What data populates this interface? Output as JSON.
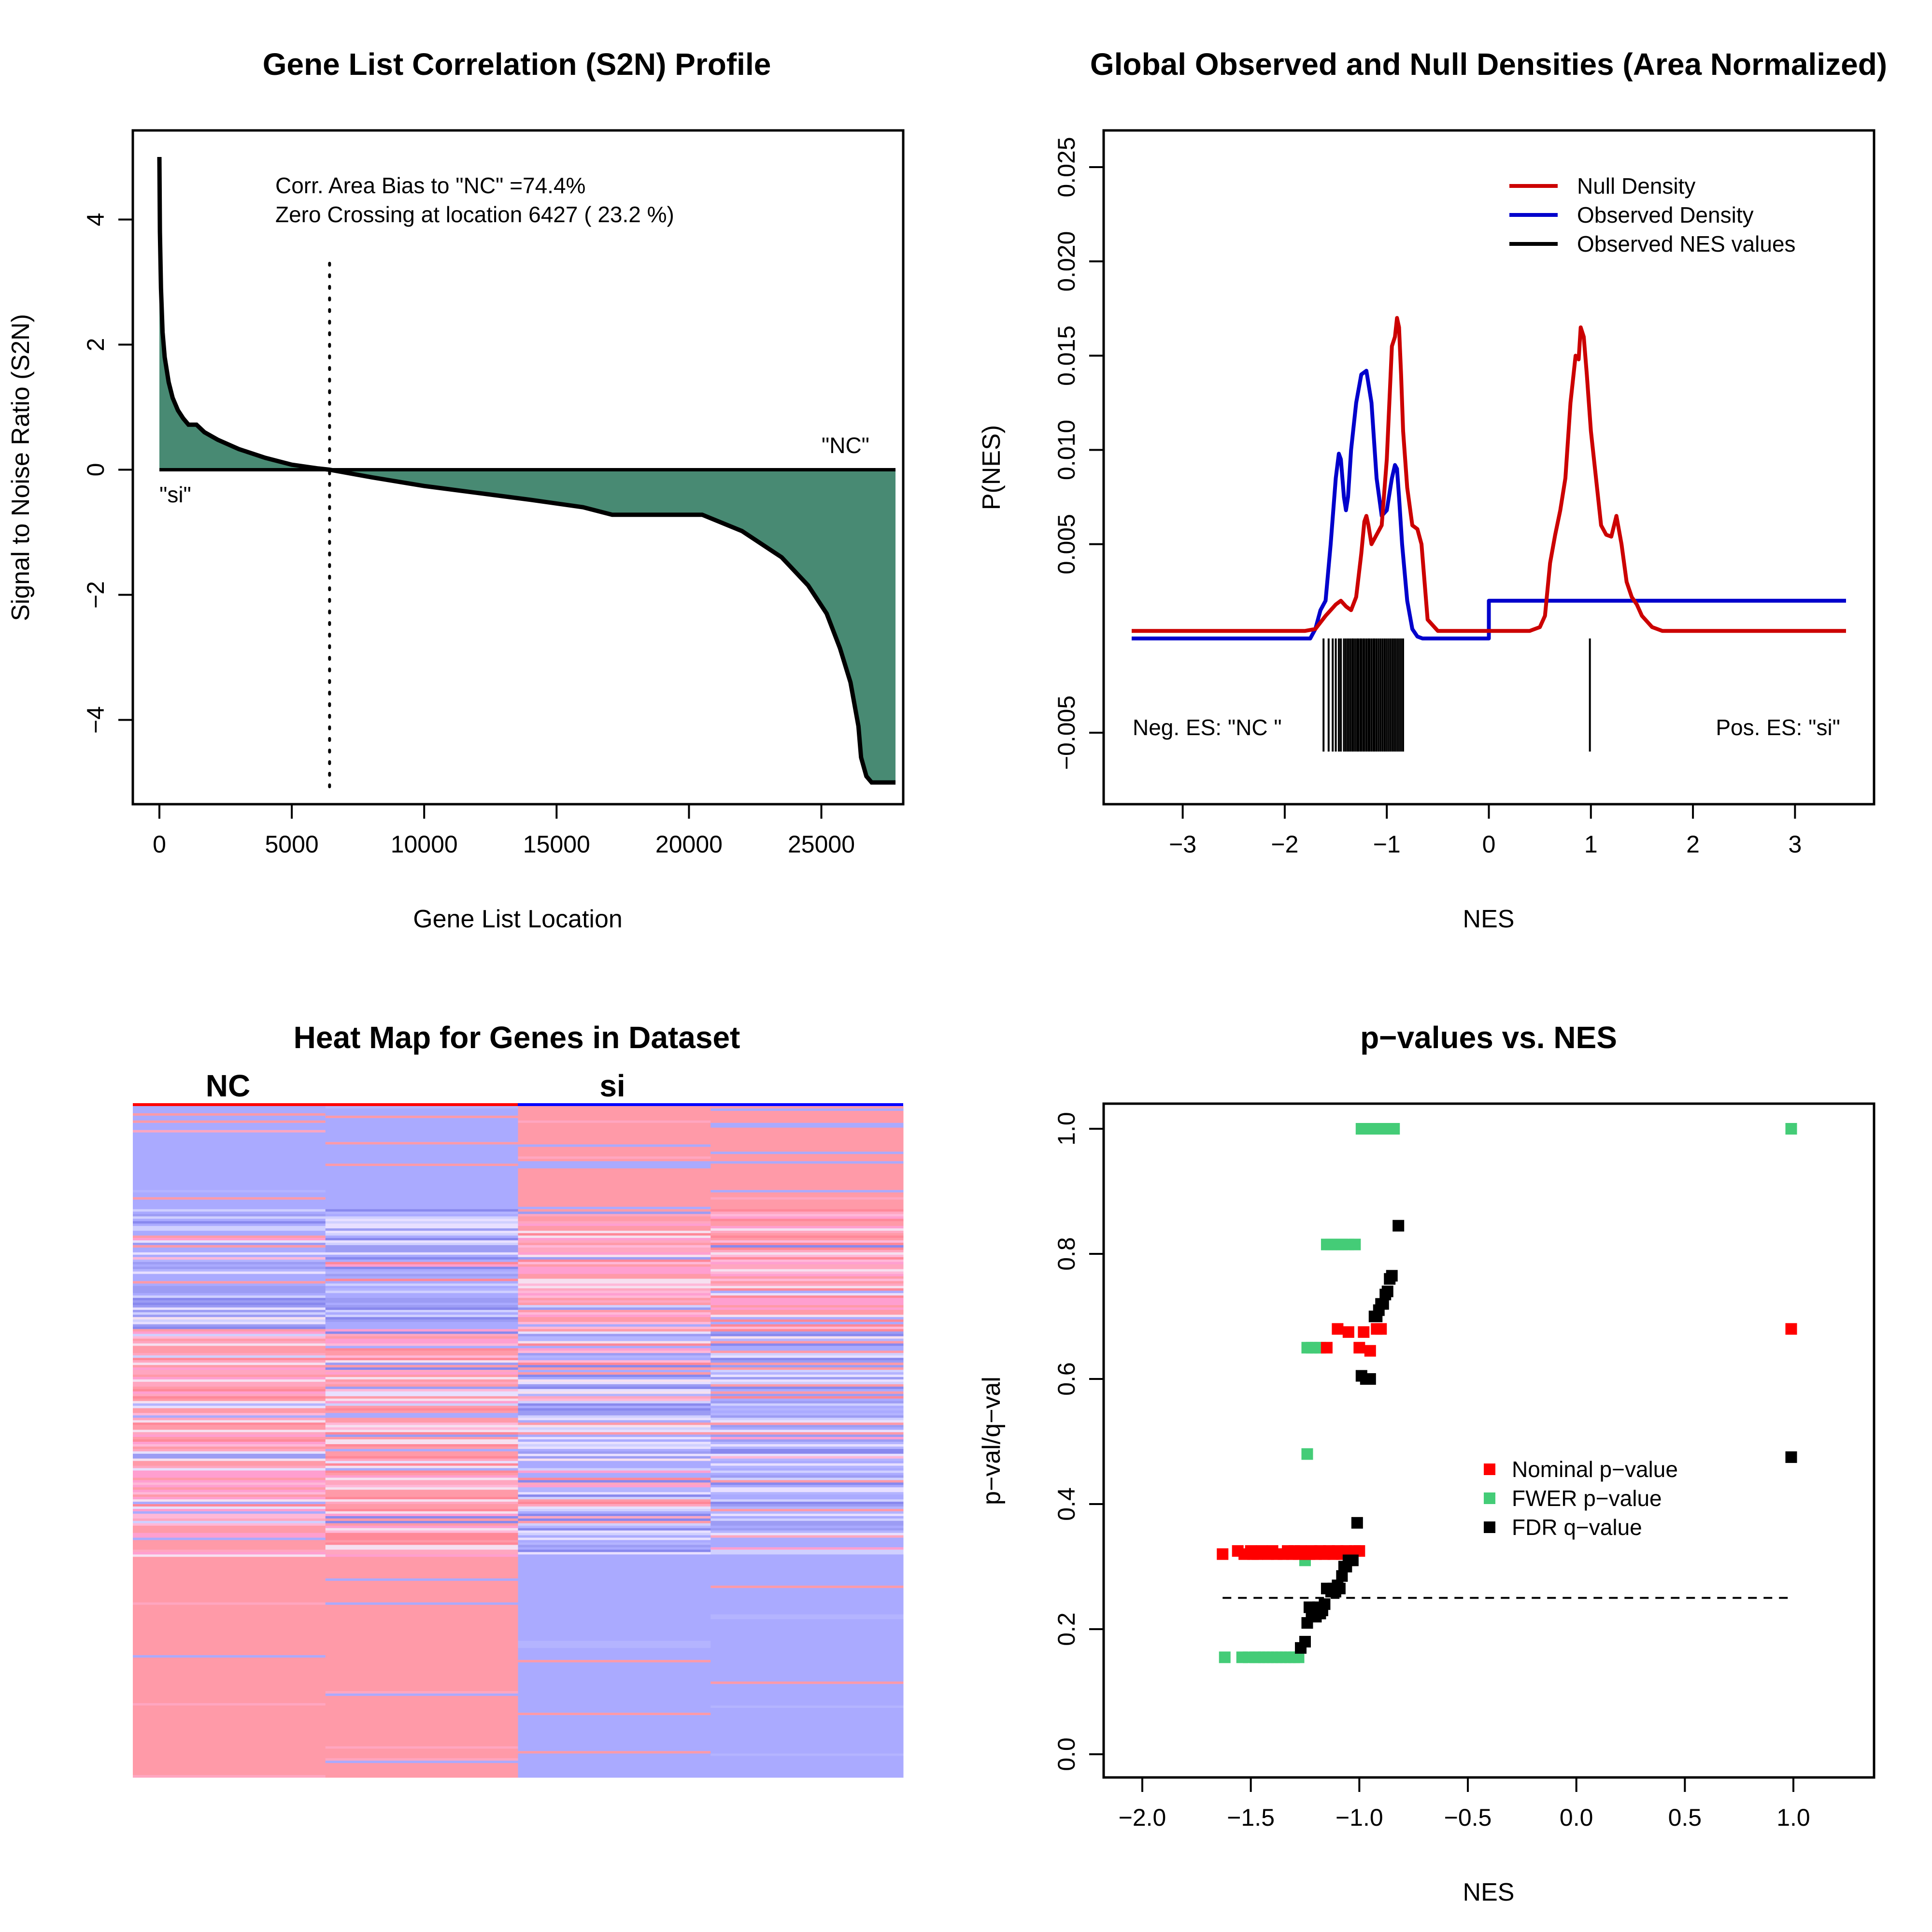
{
  "colors": {
    "fill_green": "#488a73",
    "null_red": "#cc0000",
    "observed_blue": "#0000cc",
    "pval_red": "#ff0000",
    "fwer_green": "#44cc77",
    "fdr_black": "#000000",
    "heat_pink": "#ff9aa8",
    "heat_blue": "#aaaaff"
  },
  "chart_data": [
    {
      "id": "s2n",
      "type": "area",
      "title": "Gene List Correlation (S2N) Profile",
      "xlabel": "Gene List Location",
      "ylabel": "Signal to Noise Ratio (S2N)",
      "xlim": [
        0,
        27800
      ],
      "ylim": [
        -5,
        5
      ],
      "xticks": [
        0,
        5000,
        10000,
        15000,
        20000,
        25000
      ],
      "yticks": [
        -4,
        -2,
        0,
        2,
        4
      ],
      "annotations": [
        "Corr. Area Bias to \"NC\" =74.4%",
        "Zero Crossing at location  6427  ( 23.2  %)"
      ],
      "zero_crossing": 6427,
      "label_left": "\"si\"",
      "label_right": "\"NC\"",
      "x": [
        0,
        20,
        60,
        120,
        200,
        350,
        500,
        700,
        900,
        1100,
        1400,
        1700,
        2200,
        3000,
        4000,
        5000,
        6000,
        6427,
        8000,
        10000,
        12000,
        14000,
        16000,
        17100,
        18500,
        20500,
        22000,
        23500,
        24500,
        25200,
        25700,
        26100,
        26400,
        26500,
        26700,
        26900,
        27100,
        27800
      ],
      "y": [
        5.0,
        3.8,
        2.9,
        2.2,
        1.8,
        1.4,
        1.15,
        0.95,
        0.82,
        0.72,
        0.72,
        0.6,
        0.48,
        0.33,
        0.19,
        0.08,
        0.02,
        0.0,
        -0.12,
        -0.26,
        -0.37,
        -0.48,
        -0.6,
        -0.72,
        -0.72,
        -0.72,
        -0.98,
        -1.4,
        -1.85,
        -2.3,
        -2.85,
        -3.4,
        -4.1,
        -4.6,
        -4.9,
        -5.0,
        -5.0,
        -5.0
      ]
    },
    {
      "id": "densities",
      "type": "line",
      "title": "Global Observed and Null Densities (Area Normalized)",
      "xlabel": "NES",
      "ylabel": "P(NES)",
      "xlim": [
        -3.5,
        3.5
      ],
      "ylim": [
        -0.009,
        0.027
      ],
      "xticks": [
        -3,
        -2,
        -1,
        0,
        1,
        2,
        3
      ],
      "yticks": [
        -0.005,
        0.005,
        0.01,
        0.015,
        0.02,
        0.025
      ],
      "ytick_labels": [
        "−0.005",
        "0.005",
        "0.010",
        "0.015",
        "0.020",
        "0.025"
      ],
      "legend_position": "top-right",
      "legend": [
        "Null Density",
        "Observed Density",
        "Observed NES values"
      ],
      "label_neg": "Neg. ES: \"NC \"",
      "label_pos": "Pos. ES: \"si\"",
      "series": [
        {
          "name": "Null Density",
          "x": [
            -3.5,
            -2.0,
            -1.8,
            -1.7,
            -1.6,
            -1.5,
            -1.45,
            -1.4,
            -1.35,
            -1.3,
            -1.25,
            -1.22,
            -1.2,
            -1.18,
            -1.15,
            -1.1,
            -1.05,
            -1.0,
            -0.95,
            -0.92,
            -0.9,
            -0.88,
            -0.86,
            -0.84,
            -0.8,
            -0.75,
            -0.7,
            -0.66,
            -0.63,
            -0.6,
            -0.5,
            -0.4,
            -0.3,
            -0.2,
            0.0,
            0.2,
            0.4,
            0.5,
            0.55,
            0.6,
            0.65,
            0.7,
            0.75,
            0.8,
            0.85,
            0.88,
            0.9,
            0.93,
            0.96,
            1.0,
            1.05,
            1.1,
            1.15,
            1.2,
            1.25,
            1.3,
            1.35,
            1.4,
            1.45,
            1.5,
            1.6,
            1.7,
            3.5
          ],
          "y": [
            0.0004,
            0.0004,
            0.0004,
            0.0005,
            0.0012,
            0.0018,
            0.002,
            0.0017,
            0.0015,
            0.0022,
            0.0045,
            0.0062,
            0.0065,
            0.006,
            0.005,
            0.0055,
            0.006,
            0.0095,
            0.0155,
            0.016,
            0.017,
            0.0165,
            0.014,
            0.011,
            0.008,
            0.006,
            0.0058,
            0.005,
            0.003,
            0.001,
            0.0004,
            0.0004,
            0.0004,
            0.0004,
            0.0004,
            0.0004,
            0.0004,
            0.0006,
            0.0012,
            0.004,
            0.0055,
            0.0068,
            0.0085,
            0.0125,
            0.015,
            0.0148,
            0.0165,
            0.016,
            0.014,
            0.011,
            0.0085,
            0.006,
            0.0055,
            0.0054,
            0.0065,
            0.005,
            0.003,
            0.0022,
            0.0018,
            0.0012,
            0.0006,
            0.0004,
            0.0004
          ]
        },
        {
          "name": "Observed Density",
          "x": [
            -3.5,
            -2.0,
            -1.75,
            -1.7,
            -1.65,
            -1.6,
            -1.55,
            -1.5,
            -1.47,
            -1.45,
            -1.42,
            -1.4,
            -1.38,
            -1.35,
            -1.3,
            -1.25,
            -1.2,
            -1.15,
            -1.1,
            -1.05,
            -1.0,
            -0.95,
            -0.92,
            -0.9,
            -0.88,
            -0.85,
            -0.8,
            -0.75,
            -0.7,
            -0.65,
            -0.6,
            0.0,
            0.0,
            3.5
          ],
          "y": [
            0.0,
            0.0,
            0.0,
            0.0005,
            0.0015,
            0.002,
            0.005,
            0.0085,
            0.0098,
            0.0095,
            0.0075,
            0.0068,
            0.0075,
            0.01,
            0.0125,
            0.014,
            0.0142,
            0.0125,
            0.0085,
            0.0065,
            0.0068,
            0.0085,
            0.0092,
            0.009,
            0.0075,
            0.005,
            0.002,
            0.0005,
            0.0001,
            0.0,
            0.0,
            0.0,
            0.002,
            0.002
          ]
        }
      ],
      "observed_nes": [
        -1.62,
        -1.57,
        -1.53,
        -1.5,
        -1.47,
        -1.45,
        -1.42,
        -1.4,
        -1.38,
        -1.36,
        -1.34,
        -1.33,
        -1.31,
        -1.29,
        -1.28,
        -1.26,
        -1.25,
        -1.23,
        -1.22,
        -1.2,
        -1.18,
        -1.17,
        -1.15,
        -1.13,
        -1.12,
        -1.1,
        -1.08,
        -1.06,
        -1.04,
        -1.02,
        -1.0,
        -0.98,
        -0.96,
        -0.94,
        -0.92,
        -0.9,
        -0.88,
        -0.86,
        -0.84,
        0.99
      ],
      "nes_rug_range": [
        -0.006,
        0.0
      ]
    },
    {
      "id": "heatmap",
      "type": "heatmap",
      "title": "Heat Map for Genes in Dataset",
      "groups": [
        "NC",
        "si"
      ],
      "columns": 4
    },
    {
      "id": "pvalues",
      "type": "scatter",
      "title": "p−values vs. NES",
      "xlabel": "NES",
      "ylabel": "p−val/q−val",
      "xlim": [
        -2.2,
        1.4
      ],
      "ylim": [
        -0.04,
        1.04
      ],
      "xticks": [
        -2.0,
        -1.5,
        -1.0,
        -0.5,
        0.0,
        0.5,
        1.0
      ],
      "xtick_labels": [
        "−2.0",
        "−1.5",
        "−1.0",
        "−0.5",
        "0.0",
        "0.5",
        "1.0"
      ],
      "yticks": [
        0.0,
        0.2,
        0.4,
        0.6,
        0.8,
        1.0
      ],
      "ytick_labels": [
        "0.0",
        "0.2",
        "0.4",
        "0.6",
        "0.8",
        "1.0"
      ],
      "threshold": 0.25,
      "legend_position": "center-right",
      "legend": [
        "Nominal p−value",
        "FWER p−value",
        "FDR q−value"
      ],
      "series": [
        {
          "name": "Nominal p−value",
          "x": [
            -1.63,
            -1.56,
            -1.53,
            -1.5,
            -1.49,
            -1.47,
            -1.45,
            -1.42,
            -1.4,
            -1.38,
            -1.35,
            -1.33,
            -1.31,
            -1.3,
            -1.28,
            -1.27,
            -1.25,
            -1.23,
            -1.22,
            -1.2,
            -1.18,
            -1.16,
            -1.14,
            -1.12,
            -1.1,
            -1.08,
            -1.06,
            -1.04,
            -1.02,
            -1.0,
            -1.15,
            -1.1,
            -1.05,
            -1.0,
            -0.98,
            -0.95,
            -0.92,
            -0.9,
            0.99
          ],
          "y": [
            0.32,
            0.325,
            0.32,
            0.325,
            0.32,
            0.32,
            0.325,
            0.32,
            0.325,
            0.32,
            0.32,
            0.325,
            0.32,
            0.325,
            0.32,
            0.325,
            0.32,
            0.32,
            0.325,
            0.32,
            0.325,
            0.32,
            0.325,
            0.32,
            0.325,
            0.32,
            0.325,
            0.32,
            0.325,
            0.325,
            0.65,
            0.68,
            0.675,
            0.65,
            0.675,
            0.645,
            0.68,
            0.68,
            0.68
          ]
        },
        {
          "name": "FWER p−value",
          "x": [
            -1.62,
            -1.54,
            -1.51,
            -1.48,
            -1.46,
            -1.44,
            -1.42,
            -1.4,
            -1.38,
            -1.36,
            -1.34,
            -1.32,
            -1.3,
            -1.28,
            -1.25,
            -1.24,
            -1.24,
            -1.22,
            -1.2,
            -1.18,
            -1.15,
            -1.13,
            -1.1,
            -1.08,
            -1.05,
            -1.02,
            -0.99,
            -0.96,
            -0.93,
            -0.9,
            -0.87,
            -0.84,
            0.99
          ],
          "y": [
            0.155,
            0.155,
            0.155,
            0.155,
            0.155,
            0.155,
            0.155,
            0.155,
            0.155,
            0.155,
            0.155,
            0.155,
            0.155,
            0.155,
            0.31,
            0.48,
            0.65,
            0.65,
            0.65,
            0.65,
            0.815,
            0.815,
            0.815,
            0.815,
            0.815,
            0.815,
            1.0,
            1.0,
            1.0,
            1.0,
            1.0,
            1.0,
            1.0
          ]
        },
        {
          "name": "FDR q−value",
          "x": [
            -1.27,
            -1.25,
            -1.24,
            -1.23,
            -1.22,
            -1.21,
            -1.2,
            -1.19,
            -1.18,
            -1.17,
            -1.16,
            -1.15,
            -1.13,
            -1.12,
            -1.11,
            -1.1,
            -1.09,
            -1.08,
            -1.07,
            -1.06,
            -1.05,
            -1.04,
            -1.03,
            -1.01,
            -0.99,
            -0.97,
            -0.96,
            -0.95,
            -0.93,
            -0.92,
            -0.91,
            -0.9,
            -0.89,
            -0.88,
            -0.87,
            -0.86,
            -0.85,
            -0.82,
            0.99
          ],
          "y": [
            0.17,
            0.18,
            0.21,
            0.235,
            0.225,
            0.23,
            0.22,
            0.235,
            0.225,
            0.23,
            0.24,
            0.265,
            0.26,
            0.265,
            0.26,
            0.27,
            0.265,
            0.285,
            0.3,
            0.3,
            0.31,
            0.31,
            0.31,
            0.37,
            0.605,
            0.6,
            0.6,
            0.6,
            0.7,
            0.7,
            0.71,
            0.72,
            0.72,
            0.735,
            0.74,
            0.76,
            0.765,
            0.845,
            0.475
          ]
        }
      ]
    }
  ]
}
